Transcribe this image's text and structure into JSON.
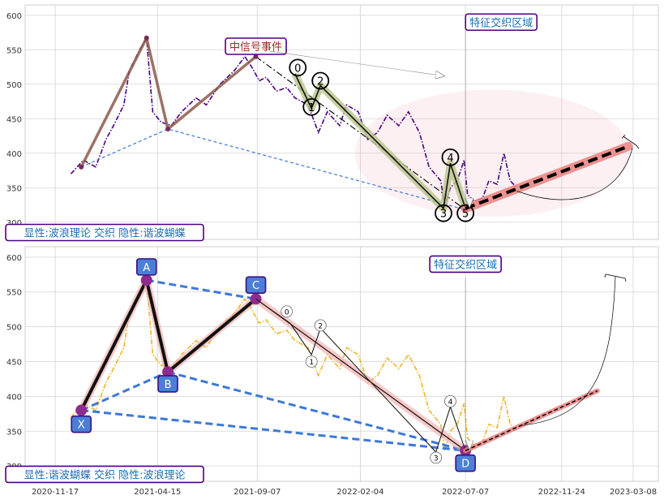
{
  "chart_data": [
    {
      "type": "line",
      "panel": "top",
      "x_ticks": [
        "2020-11-17",
        "2021-04-15",
        "2021-09-07",
        "2022-02-04",
        "2022-07-07",
        "2022-11-24",
        "2023-03-08"
      ],
      "x_ticks_visible": false,
      "y_ticks": [
        300,
        350,
        400,
        450,
        500,
        550,
        600
      ],
      "ylim": [
        275,
        615
      ],
      "grid": true,
      "price_series": {
        "style": "dash-dot",
        "color": "#4b0082",
        "x": [
          "2020-12-10",
          "2020-12-28",
          "2021-01-15",
          "2021-01-30",
          "2021-02-10",
          "2021-02-25",
          "2021-03-05",
          "2021-03-20",
          "2021-03-30",
          "2021-04-08",
          "2021-04-20",
          "2021-05-05",
          "2021-05-20",
          "2021-06-10",
          "2021-06-25",
          "2021-07-15",
          "2021-08-05",
          "2021-08-20",
          "2021-08-30",
          "2021-09-10",
          "2021-09-20",
          "2021-10-05",
          "2021-10-20",
          "2021-11-01",
          "2021-11-20",
          "2021-12-05",
          "2021-12-18",
          "2022-01-05",
          "2022-01-15",
          "2022-02-01",
          "2022-02-15",
          "2022-03-01",
          "2022-03-15",
          "2022-04-01",
          "2022-04-15",
          "2022-05-01",
          "2022-05-15",
          "2022-06-01",
          "2022-06-07",
          "2022-06-15",
          "2022-06-25",
          "2022-07-05",
          "2022-07-10",
          "2022-07-20",
          "2022-08-01",
          "2022-08-10",
          "2022-08-22",
          "2022-09-01",
          "2022-09-10",
          "2022-09-20"
        ],
        "y": [
          370,
          390,
          380,
          420,
          440,
          470,
          520,
          550,
          567,
          460,
          445,
          440,
          460,
          480,
          470,
          500,
          520,
          540,
          525,
          505,
          510,
          490,
          495,
          480,
          470,
          430,
          460,
          440,
          470,
          460,
          420,
          430,
          455,
          440,
          460,
          430,
          380,
          360,
          322,
          350,
          360,
          390,
          340,
          330,
          335,
          360,
          355,
          400,
          360,
          350
        ]
      },
      "annotations": [
        {
          "text": "中信号事件",
          "x": "2021-09-05",
          "y": 555
        },
        {
          "text": "特征交织区域",
          "x": "2022-08-28",
          "y": 590
        },
        {
          "text": "显性:波浪理论 交织 隐性:谐波蝴蝶",
          "x": "2021-01-28",
          "y": 285
        }
      ],
      "wave_labels": [
        {
          "label": "0",
          "x": "2021-11-05",
          "y": 524
        },
        {
          "label": "1",
          "x": "2021-11-25",
          "y": 467
        },
        {
          "label": "2",
          "x": "2021-12-08",
          "y": 505
        },
        {
          "label": "3",
          "x": "2022-06-05",
          "y": 313
        },
        {
          "label": "4",
          "x": "2022-06-15",
          "y": 394
        },
        {
          "label": "5",
          "x": "2022-07-07",
          "y": 313
        }
      ],
      "harmonic_points": [
        {
          "x": "2020-12-25",
          "y": 380
        },
        {
          "x": "2021-03-30",
          "y": 567
        },
        {
          "x": "2021-04-30",
          "y": 435
        },
        {
          "x": "2021-09-05",
          "y": 540
        },
        {
          "x": "2022-07-07",
          "y": 318
        }
      ],
      "impulse_path": [
        {
          "x": "2021-11-01",
          "y": 515
        },
        {
          "x": "2021-11-25",
          "y": 465
        },
        {
          "x": "2021-12-08",
          "y": 498
        },
        {
          "x": "2022-06-05",
          "y": 320
        },
        {
          "x": "2022-06-15",
          "y": 385
        },
        {
          "x": "2022-07-07",
          "y": 320
        }
      ],
      "projection": {
        "from": {
          "x": "2022-07-07",
          "y": 320
        },
        "to": {
          "x": "2023-03-01",
          "y": 410
        }
      },
      "ellipse": {
        "cx": "2022-08-15",
        "cy": 400,
        "rx_days": 200,
        "ry": 92
      }
    },
    {
      "type": "line",
      "panel": "bottom",
      "x_ticks": [
        "2020-11-17",
        "2021-04-15",
        "2021-09-07",
        "2022-02-04",
        "2022-07-07",
        "2022-11-24",
        "2023-03-08"
      ],
      "y_ticks": [
        300,
        350,
        400,
        450,
        500,
        550,
        600
      ],
      "ylim": [
        278,
        615
      ],
      "grid": true,
      "price_series": {
        "style": "dash-dot",
        "color": "#f0b429",
        "x": [
          "2020-12-10",
          "2020-12-28",
          "2021-01-15",
          "2021-01-30",
          "2021-02-10",
          "2021-02-25",
          "2021-03-05",
          "2021-03-20",
          "2021-03-30",
          "2021-04-08",
          "2021-04-20",
          "2021-05-05",
          "2021-05-20",
          "2021-06-10",
          "2021-06-25",
          "2021-07-15",
          "2021-08-05",
          "2021-08-20",
          "2021-08-30",
          "2021-09-10",
          "2021-09-20",
          "2021-10-05",
          "2021-10-20",
          "2021-11-01",
          "2021-11-20",
          "2021-12-05",
          "2021-12-18",
          "2022-01-05",
          "2022-01-15",
          "2022-02-01",
          "2022-02-15",
          "2022-03-01",
          "2022-03-15",
          "2022-04-01",
          "2022-04-15",
          "2022-05-01",
          "2022-05-15",
          "2022-06-01",
          "2022-06-07",
          "2022-06-15",
          "2022-06-25",
          "2022-07-05",
          "2022-07-10",
          "2022-07-20",
          "2022-08-01",
          "2022-08-10",
          "2022-08-22",
          "2022-09-01",
          "2022-09-10",
          "2022-09-20"
        ],
        "y": [
          370,
          390,
          380,
          420,
          440,
          470,
          520,
          550,
          567,
          460,
          445,
          440,
          460,
          480,
          470,
          500,
          520,
          540,
          525,
          505,
          510,
          490,
          495,
          480,
          470,
          430,
          460,
          440,
          470,
          460,
          420,
          430,
          455,
          440,
          460,
          430,
          380,
          360,
          322,
          350,
          360,
          390,
          340,
          330,
          335,
          360,
          355,
          400,
          360,
          350
        ]
      },
      "annotations": [
        {
          "text": "特征交织区域",
          "x": "2022-07-07",
          "y": 590
        },
        {
          "text": "显性:谐波蝴蝶 交织 隐性:波浪理论",
          "x": "2021-01-28",
          "y": 288
        }
      ],
      "harmonic_points": [
        {
          "label": "X",
          "x": "2020-12-25",
          "y": 380,
          "label_y": 360
        },
        {
          "label": "A",
          "x": "2021-03-30",
          "y": 567,
          "label_y": 586
        },
        {
          "label": "B",
          "x": "2021-04-30",
          "y": 435,
          "label_y": 418
        },
        {
          "label": "C",
          "x": "2021-09-05",
          "y": 540,
          "label_y": 560
        },
        {
          "label": "D",
          "x": "2022-07-07",
          "y": 322,
          "label_y": 304
        }
      ],
      "wave_labels": [
        {
          "label": "0",
          "x": "2021-10-20",
          "y": 522
        },
        {
          "label": "1",
          "x": "2021-11-25",
          "y": 450
        },
        {
          "label": "2",
          "x": "2021-12-08",
          "y": 502
        },
        {
          "label": "3",
          "x": "2022-05-25",
          "y": 312
        },
        {
          "label": "4",
          "x": "2022-06-15",
          "y": 393
        }
      ],
      "impulse_path": [
        {
          "x": "2021-09-05",
          "y": 540
        },
        {
          "x": "2021-10-25",
          "y": 505
        },
        {
          "x": "2021-11-25",
          "y": 460
        },
        {
          "x": "2021-12-08",
          "y": 498
        },
        {
          "x": "2022-05-25",
          "y": 320
        },
        {
          "x": "2022-06-15",
          "y": 385
        },
        {
          "x": "2022-07-07",
          "y": 322
        }
      ],
      "projection": {
        "from": {
          "x": "2022-07-07",
          "y": 322
        },
        "to": {
          "x": "2023-01-15",
          "y": 408
        }
      }
    }
  ]
}
